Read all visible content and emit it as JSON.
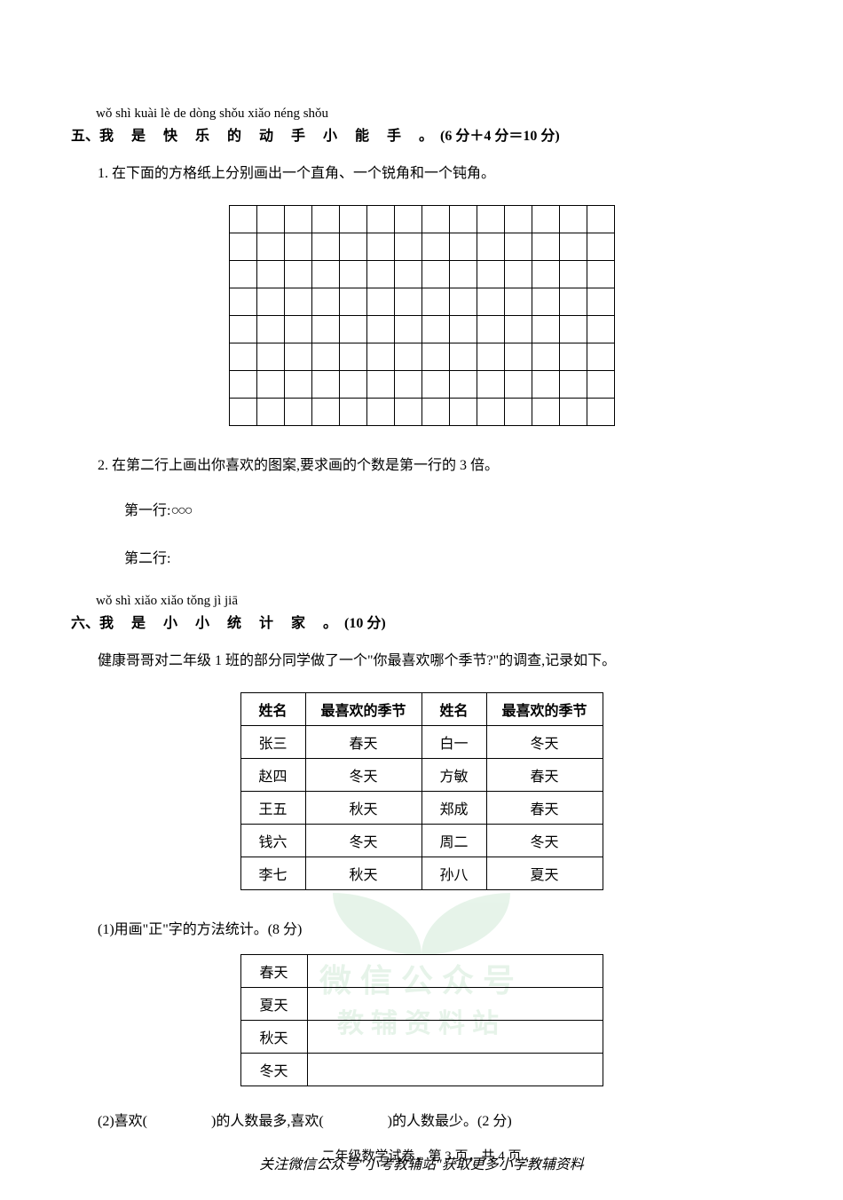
{
  "section5": {
    "pinyin": "wǒ shì kuài lè de dòng shǒu xiǎo néng shǒu",
    "number": "五、",
    "title_hanzi": "我 是 快 乐 的 动   手   小   能   手   。",
    "score_text": "(6 分＋4 分＝10 分)",
    "q1": "1. 在下面的方格纸上分别画出一个直角、一个锐角和一个钝角。",
    "grid": {
      "rows": 8,
      "cols": 14
    },
    "q2": "2. 在第二行上画出你喜欢的图案,要求画的个数是第一行的 3 倍。",
    "line1_label": "第一行:",
    "line1_shapes": "○○○",
    "line2_label": "第二行:"
  },
  "section6": {
    "pinyin": "wǒ shì xiǎo xiǎo tǒng jì jiā",
    "number": "六、",
    "title_hanzi": "我 是 小   小   统 计 家 。",
    "score_text": "(10 分)",
    "intro": "健康哥哥对二年级 1 班的部分同学做了一个\"你最喜欢哪个季节?\"的调查,记录如下。",
    "survey_headers": [
      "姓名",
      "最喜欢的季节",
      "姓名",
      "最喜欢的季节"
    ],
    "survey_rows": [
      [
        "张三",
        "春天",
        "白一",
        "冬天"
      ],
      [
        "赵四",
        "冬天",
        "方敏",
        "春天"
      ],
      [
        "王五",
        "秋天",
        "郑成",
        "春天"
      ],
      [
        "钱六",
        "冬天",
        "周二",
        "冬天"
      ],
      [
        "李七",
        "秋天",
        "孙八",
        "夏天"
      ]
    ],
    "sub1": "(1)用画\"正\"字的方法统计。(8 分)",
    "tally_labels": [
      "春天",
      "夏天",
      "秋天",
      "冬天"
    ],
    "sub2_pre": "(2)喜欢(",
    "sub2_mid": ")的人数最多,喜欢(",
    "sub2_post": ")的人数最少。(2 分)"
  },
  "page_footer": "二年级数学试卷，第 3 页，共 4 页",
  "bottom_note": "关注微信公众号\"小考教辅站\"获取更多小学教辅资料",
  "watermark": {
    "line1": "微信公众号",
    "line2": "教辅资料站"
  }
}
